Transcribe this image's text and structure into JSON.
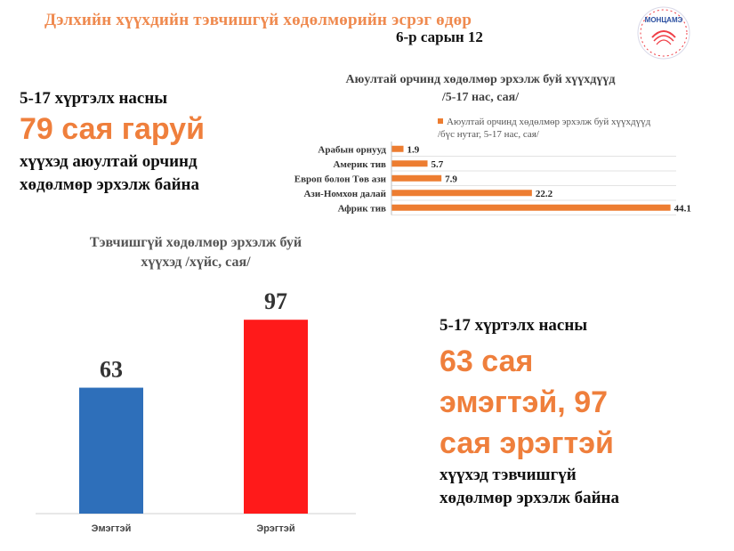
{
  "header": {
    "title": "Дэлхийн хүүхдийн тэвчишгүй хөдөлмөрийн эсрэг өдөр",
    "date": "6-р сарын 12",
    "logo_text": "МОНЦАМЭ"
  },
  "fact_left": {
    "line1": "5-17 хүртэлх насны",
    "big": "79 сая гаруй",
    "line3": "хүүхэд аюултай орчинд",
    "line4": "хөдөлмөр эрхэлж байна"
  },
  "fact_right": {
    "line1": "5-17 хүртэлх насны",
    "big1": "63 сая",
    "big2": "эмэгтэй, 97",
    "big3": "сая эрэгтэй",
    "line5": "хүүхэд тэвчишгүй",
    "line6": "хөдөлмөр эрхэлж байна"
  },
  "colors": {
    "accent": "#ef7f3c",
    "bar_orange": "#ed7d31",
    "bar_blue": "#2e6fba",
    "bar_red": "#ff1a1a"
  },
  "chart_data": [
    {
      "type": "bar",
      "orientation": "horizontal",
      "title_line1": "Аюултай орчинд хөдөлмөр эрхэлж буй хүүхдүүд",
      "title_line2": "/5-17 нас, сая/",
      "legend_line1": "Аюултай орчинд хөдөлмөр эрхэлж буй хүүхдүүд",
      "legend_line2": "/бүс нутаг, 5-17 нас, сая/",
      "categories": [
        "Арабын орнууд",
        "Америк тив",
        "Европ болон Төв ази",
        "Ази-Номхон далай",
        "Африк тив"
      ],
      "values": [
        1.9,
        5.7,
        7.9,
        22.2,
        44.1
      ],
      "value_labels": [
        "1.9",
        "5.7",
        "7.9",
        "22.2",
        "44.1"
      ],
      "xlim": [
        0,
        45
      ],
      "grid": true
    },
    {
      "type": "bar",
      "title_line1": "Тэвчишгүй хөдөлмөр эрхэлж буй",
      "title_line2": "хүүхэд /хүйс, сая/",
      "categories": [
        "Эмэгтэй",
        "Эрэгтэй"
      ],
      "values": [
        63,
        97
      ],
      "value_labels": [
        "63",
        "97"
      ],
      "ylim": [
        0,
        110
      ]
    }
  ]
}
